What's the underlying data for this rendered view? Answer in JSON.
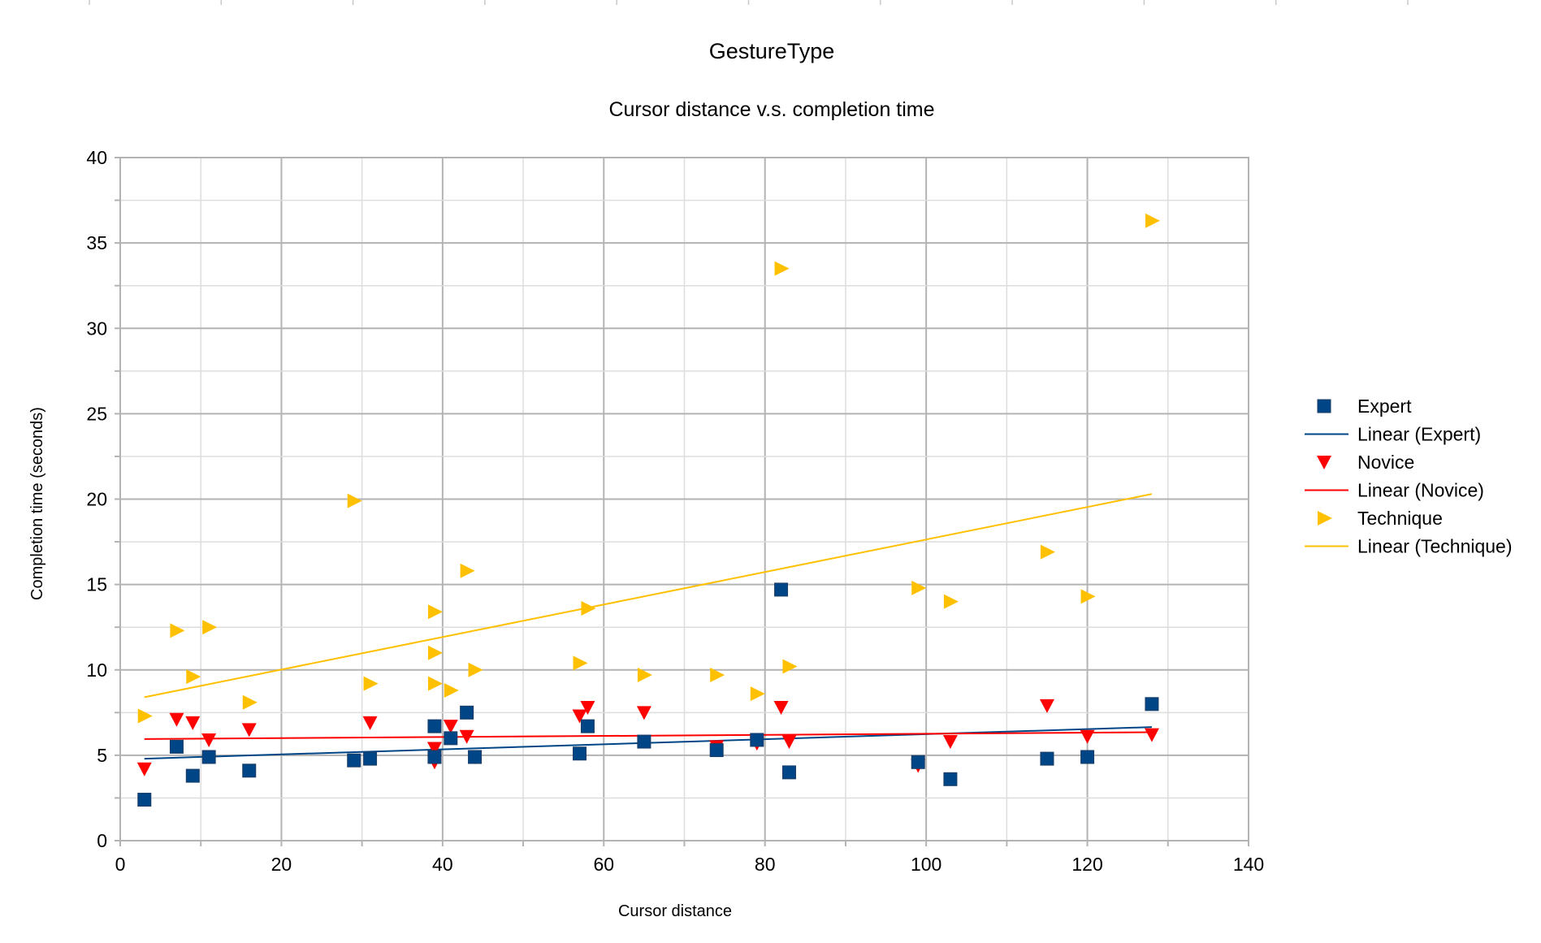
{
  "chart_data": {
    "type": "scatter",
    "title": "GestureType",
    "subtitle": "Cursor distance v.s. completion time",
    "xlabel": "Cursor distance",
    "ylabel": "Completion time (seconds)",
    "xlim": [
      0,
      140
    ],
    "ylim": [
      0,
      40
    ],
    "xticks": [
      "0",
      "20",
      "40",
      "60",
      "80",
      "100",
      "120",
      "140"
    ],
    "yticks": [
      "0",
      "5",
      "10",
      "15",
      "20",
      "25",
      "30",
      "35",
      "40"
    ],
    "grid": true,
    "legend_position": "right",
    "series": [
      {
        "name": "Expert",
        "marker": "square",
        "color": "#004586",
        "x": [
          3,
          7,
          9,
          11,
          16,
          29,
          31,
          39,
          39,
          41,
          43,
          44,
          57,
          58,
          65,
          74,
          79,
          82,
          83,
          99,
          103,
          115,
          120,
          128
        ],
        "y": [
          2.4,
          5.5,
          3.8,
          4.9,
          4.1,
          4.7,
          4.8,
          6.7,
          4.9,
          6.0,
          7.5,
          4.9,
          5.1,
          6.7,
          5.8,
          5.3,
          5.9,
          14.7,
          4.0,
          4.6,
          3.6,
          4.8,
          4.9,
          8.0
        ],
        "trend_name": "Linear (Expert)",
        "trend": {
          "x": [
            3,
            128
          ],
          "y": [
            4.8,
            6.65
          ]
        }
      },
      {
        "name": "Novice",
        "marker": "triangle-down",
        "color": "#ff0000",
        "x": [
          3,
          7,
          9,
          11,
          16,
          31,
          39,
          39,
          41,
          43,
          44,
          57,
          58,
          65,
          74,
          79,
          82,
          83,
          99,
          103,
          115,
          120,
          128
        ],
        "y": [
          4.2,
          7.1,
          6.9,
          5.9,
          6.5,
          6.9,
          5.4,
          4.6,
          6.7,
          6.1,
          4.9,
          7.3,
          7.8,
          7.5,
          5.5,
          5.7,
          7.8,
          5.8,
          4.4,
          5.8,
          7.9,
          6.1,
          6.2
        ],
        "trend_name": "Linear (Novice)",
        "trend": {
          "x": [
            3,
            128
          ],
          "y": [
            5.95,
            6.35
          ]
        }
      },
      {
        "name": "Technique",
        "marker": "triangle-right",
        "color": "#ffc000",
        "x": [
          3,
          7,
          9,
          11,
          16,
          29,
          31,
          39,
          39,
          39,
          41,
          43,
          44,
          57,
          58,
          65,
          74,
          79,
          82,
          83,
          99,
          103,
          115,
          120,
          128
        ],
        "y": [
          7.3,
          12.3,
          9.6,
          12.5,
          8.1,
          19.9,
          9.2,
          13.4,
          11.0,
          9.2,
          8.8,
          15.8,
          10.0,
          10.4,
          13.6,
          9.7,
          9.7,
          8.6,
          33.5,
          10.2,
          14.8,
          14.0,
          16.9,
          14.3,
          36.3
        ],
        "trend_name": "Linear (Technique)",
        "trend": {
          "x": [
            3,
            128
          ],
          "y": [
            8.4,
            20.3
          ]
        }
      }
    ]
  }
}
